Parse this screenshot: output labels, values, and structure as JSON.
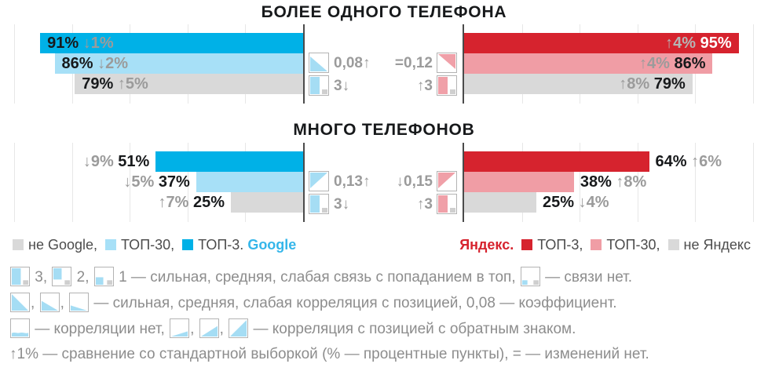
{
  "sections": [
    {
      "title": "БОЛЕЕ ОДНОГО ТЕЛЕФОНА"
    },
    {
      "title": "МНОГО ТЕЛЕФОНОВ"
    }
  ],
  "colors": {
    "google_top3": "#00b1e7",
    "google_top30": "#a7e0f7",
    "neutral": "#d9d9d9",
    "yandex_top3": "#d6232e",
    "yandex_top30": "#f09da5",
    "icon_blue": "#a5ddf4",
    "icon_pink": "#f0a0a8",
    "icon_gray": "#cfcfcf",
    "axis": "#4b4b4b",
    "gridline": "#e7e7e7",
    "text_dark": "#17191b",
    "text_delta": "#9b9b9b",
    "text_delta_on_red": "#b5b5b5",
    "value_on_red": "#ffffff",
    "google_brand": "#35b6ea",
    "yandex_brand": "#d6232e",
    "legend_text": "#4c4c4c",
    "footnote_text": "#8d8d8d"
  },
  "chart_data": [
    {
      "type": "bar",
      "title": "БОЛЕЕ ОДНОГО ТЕЛЕФОНА",
      "engine": "Google",
      "anchor": "right",
      "categories": [
        "ТОП-3",
        "ТОП-30",
        "не Google"
      ],
      "values": [
        91,
        86,
        79
      ],
      "deltas": [
        "↓1%",
        "↓2%",
        "↑5%"
      ],
      "bar_colors": [
        "google_top3",
        "google_top30",
        "neutral"
      ],
      "value_colors": [
        "text_dark",
        "text_dark",
        "text_dark"
      ],
      "delta_colors": [
        "text_delta",
        "text_delta",
        "text_delta"
      ],
      "labels": "inside",
      "label_order": "value-first",
      "xlim": [
        0,
        100
      ],
      "gridline_step_pct": 20,
      "stats": [
        {
          "icon": "correlation-down-left",
          "text": "0,08↑"
        },
        {
          "icon": "rank-bar",
          "text": "3↓"
        }
      ]
    },
    {
      "type": "bar",
      "title": "БОЛЕЕ ОДНОГО ТЕЛЕФОНА",
      "engine": "Яндекс",
      "anchor": "left",
      "categories": [
        "ТОП-3",
        "ТОП-30",
        "не Яндекс"
      ],
      "values": [
        95,
        86,
        79
      ],
      "deltas": [
        "↑4%",
        "↑4%",
        "↑8%"
      ],
      "bar_colors": [
        "yandex_top3",
        "yandex_top30",
        "neutral"
      ],
      "value_colors": [
        "value_on_red",
        "text_dark",
        "text_dark"
      ],
      "delta_colors": [
        "text_delta_on_red",
        "text_delta",
        "text_delta"
      ],
      "labels": "inside",
      "label_order": "delta-first",
      "xlim": [
        0,
        100
      ],
      "gridline_step_pct": 20,
      "stats": [
        {
          "icon": "correlation-up-right",
          "text": "=0,12"
        },
        {
          "icon": "rank-bar",
          "text": "↑3"
        }
      ]
    },
    {
      "type": "bar",
      "title": "МНОГО ТЕЛЕФОНОВ",
      "engine": "Google",
      "anchor": "right",
      "categories": [
        "ТОП-3",
        "ТОП-30",
        "не Google"
      ],
      "values": [
        51,
        37,
        25
      ],
      "deltas": [
        "↓9%",
        "↓5%",
        "↑7%"
      ],
      "bar_colors": [
        "google_top3",
        "google_top30",
        "neutral"
      ],
      "value_colors": [
        "text_dark",
        "text_dark",
        "text_dark"
      ],
      "delta_colors": [
        "text_delta",
        "text_delta",
        "text_delta"
      ],
      "labels": "outside",
      "label_order": "delta-first",
      "xlim": [
        0,
        100
      ],
      "gridline_step_pct": 20,
      "stats": [
        {
          "icon": "correlation-up-left",
          "text": "0,13↑"
        },
        {
          "icon": "rank-bar",
          "text": "3↓"
        }
      ]
    },
    {
      "type": "bar",
      "title": "МНОГО ТЕЛЕФОНОВ",
      "engine": "Яндекс",
      "anchor": "left",
      "categories": [
        "ТОП-3",
        "ТОП-30",
        "не Яндекс"
      ],
      "values": [
        64,
        38,
        25
      ],
      "deltas": [
        "↑6%",
        "↑8%",
        "↓4%"
      ],
      "bar_colors": [
        "yandex_top3",
        "yandex_top30",
        "neutral"
      ],
      "value_colors": [
        "text_dark",
        "text_dark",
        "text_dark"
      ],
      "delta_colors": [
        "text_delta",
        "text_delta",
        "text_delta"
      ],
      "labels": "outside",
      "label_order": "value-first",
      "xlim": [
        0,
        100
      ],
      "gridline_step_pct": 20,
      "stats": [
        {
          "icon": "correlation-up-left",
          "text": "↓0,15"
        },
        {
          "icon": "rank-bar",
          "text": "↑3"
        }
      ]
    }
  ],
  "legend": {
    "google": {
      "brand": "Google",
      "items": [
        {
          "swatch": "neutral",
          "label": "не Google,"
        },
        {
          "swatch": "google_top30",
          "label": "ТОП-30,"
        },
        {
          "swatch": "google_top3",
          "label": "ТОП-3."
        }
      ]
    },
    "yandex": {
      "brand": "Яндекс.",
      "items": [
        {
          "swatch": "yandex_top3",
          "label": "ТОП-3,"
        },
        {
          "swatch": "yandex_top30",
          "label": "ТОП-30,"
        },
        {
          "swatch": "neutral",
          "label": "не Яндекс"
        }
      ]
    }
  },
  "footnotes": [
    {
      "tokens": [
        {
          "icon": "link-3"
        },
        {
          "text": " 3, "
        },
        {
          "icon": "link-2"
        },
        {
          "text": " 2, "
        },
        {
          "icon": "link-1"
        },
        {
          "text": " 1 — сильная, средняя, слабая связь с попаданием в топ, "
        },
        {
          "icon": "link-0"
        },
        {
          "text": " — связи нет."
        }
      ]
    },
    {
      "tokens": [
        {
          "icon": "corr-strong"
        },
        {
          "text": ", "
        },
        {
          "icon": "corr-medium"
        },
        {
          "text": ", "
        },
        {
          "icon": "corr-weak"
        },
        {
          "text": " — сильная, средняя, слабая корреляция с позицией, 0,08 — коэффициент."
        }
      ]
    },
    {
      "tokens": [
        {
          "icon": "corr-none"
        },
        {
          "text": " — корреляции нет, "
        },
        {
          "icon": "corr-rev-weak"
        },
        {
          "text": ", "
        },
        {
          "icon": "corr-rev-medium"
        },
        {
          "text": ", "
        },
        {
          "icon": "corr-rev-strong"
        },
        {
          "text": " — корреляция с позицией с обратным знаком."
        }
      ]
    },
    {
      "tokens": [
        {
          "text": "↑1% — сравнение со стандартной выборкой (% — процентные пункты), = — изменений нет."
        }
      ]
    }
  ]
}
